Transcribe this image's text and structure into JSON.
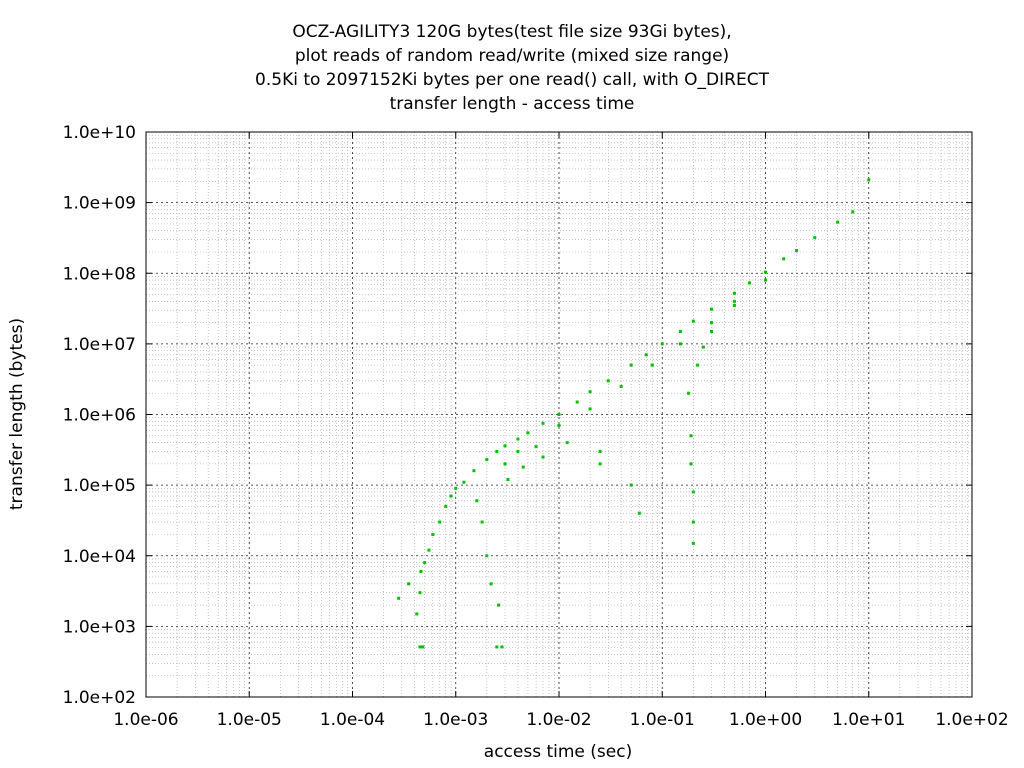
{
  "chart_data": {
    "type": "scatter",
    "title_lines": [
      "OCZ-AGILITY3 120G bytes(test file size 93Gi bytes),",
      "plot reads of random read/write (mixed size range)",
      "0.5Ki to 2097152Ki bytes per one read() call, with O_DIRECT",
      "transfer length - access time"
    ],
    "xlabel": "access time (sec)",
    "ylabel": "transfer length (bytes)",
    "x_scale": "log",
    "y_scale": "log",
    "xlim": [
      1e-06,
      100
    ],
    "ylim": [
      100,
      10000000000.0
    ],
    "x_ticks": [
      "1.0e-06",
      "1.0e-05",
      "1.0e-04",
      "1.0e-03",
      "1.0e-02",
      "1.0e-01",
      "1.0e+00",
      "1.0e+01",
      "1.0e+02"
    ],
    "y_ticks": [
      "1.0e+02",
      "1.0e+03",
      "1.0e+04",
      "1.0e+05",
      "1.0e+06",
      "1.0e+07",
      "1.0e+08",
      "1.0e+09",
      "1.0e+10"
    ],
    "grid": true,
    "point_color": "#00c000",
    "series": [
      {
        "points": [
          [
            0.00045,
            512
          ],
          [
            0.00048,
            512
          ],
          [
            0.0025,
            512
          ],
          [
            0.0028,
            512
          ],
          [
            0.00028,
            2500
          ],
          [
            0.00035,
            4000
          ],
          [
            0.00042,
            1500
          ],
          [
            0.00045,
            3000
          ],
          [
            0.00046,
            6000
          ],
          [
            0.0005,
            8000
          ],
          [
            0.00055,
            12000
          ],
          [
            0.0006,
            20000
          ],
          [
            0.0007,
            30000
          ],
          [
            0.0008,
            50000
          ],
          [
            0.0009,
            70000
          ],
          [
            0.001,
            90000
          ],
          [
            0.0012,
            110000
          ],
          [
            0.0015,
            160000
          ],
          [
            0.002,
            230000
          ],
          [
            0.0025,
            300000
          ],
          [
            0.003,
            360000
          ],
          [
            0.004,
            450000
          ],
          [
            0.005,
            550000
          ],
          [
            0.007,
            750000
          ],
          [
            0.01,
            1000000
          ],
          [
            0.015,
            1500000
          ],
          [
            0.02,
            2100000
          ],
          [
            0.03,
            3000000
          ],
          [
            0.05,
            5000000
          ],
          [
            0.07,
            7000000
          ],
          [
            0.1,
            10000000
          ],
          [
            0.15,
            15000000
          ],
          [
            0.2,
            21000000
          ],
          [
            0.3,
            31000000
          ],
          [
            0.5,
            52000000
          ],
          [
            0.7,
            73000000
          ],
          [
            1.0,
            104000000
          ],
          [
            1.5,
            160000000
          ],
          [
            2.0,
            210000000
          ],
          [
            3.0,
            320000000
          ],
          [
            5.0,
            530000000
          ],
          [
            7.0,
            740000000
          ],
          [
            10.0,
            2100000000
          ],
          [
            0.003,
            200000
          ],
          [
            0.004,
            300000
          ],
          [
            0.006,
            350000
          ],
          [
            0.01,
            700000
          ],
          [
            0.02,
            1200000
          ],
          [
            0.04,
            2500000
          ],
          [
            0.08,
            5000000
          ],
          [
            0.15,
            10000000
          ],
          [
            0.3,
            20000000
          ],
          [
            0.5,
            35000000
          ],
          [
            0.0018,
            30000
          ],
          [
            0.002,
            10000
          ],
          [
            0.0022,
            4000
          ],
          [
            0.0026,
            2000
          ],
          [
            0.0016,
            60000
          ],
          [
            0.0032,
            120000
          ],
          [
            0.0045,
            180000
          ],
          [
            0.007,
            250000
          ],
          [
            0.012,
            400000
          ],
          [
            0.025,
            300000
          ],
          [
            0.025,
            200000
          ],
          [
            0.05,
            100000
          ],
          [
            0.06,
            40000
          ],
          [
            0.18,
            2000000
          ],
          [
            0.19,
            500000
          ],
          [
            0.19,
            200000
          ],
          [
            0.2,
            80000
          ],
          [
            0.2,
            30000
          ],
          [
            0.2,
            15000
          ],
          [
            0.22,
            5000000
          ],
          [
            0.25,
            9000000
          ],
          [
            0.3,
            15000000
          ],
          [
            0.5,
            40000000
          ],
          [
            1.0,
            80000000
          ]
        ]
      }
    ]
  }
}
